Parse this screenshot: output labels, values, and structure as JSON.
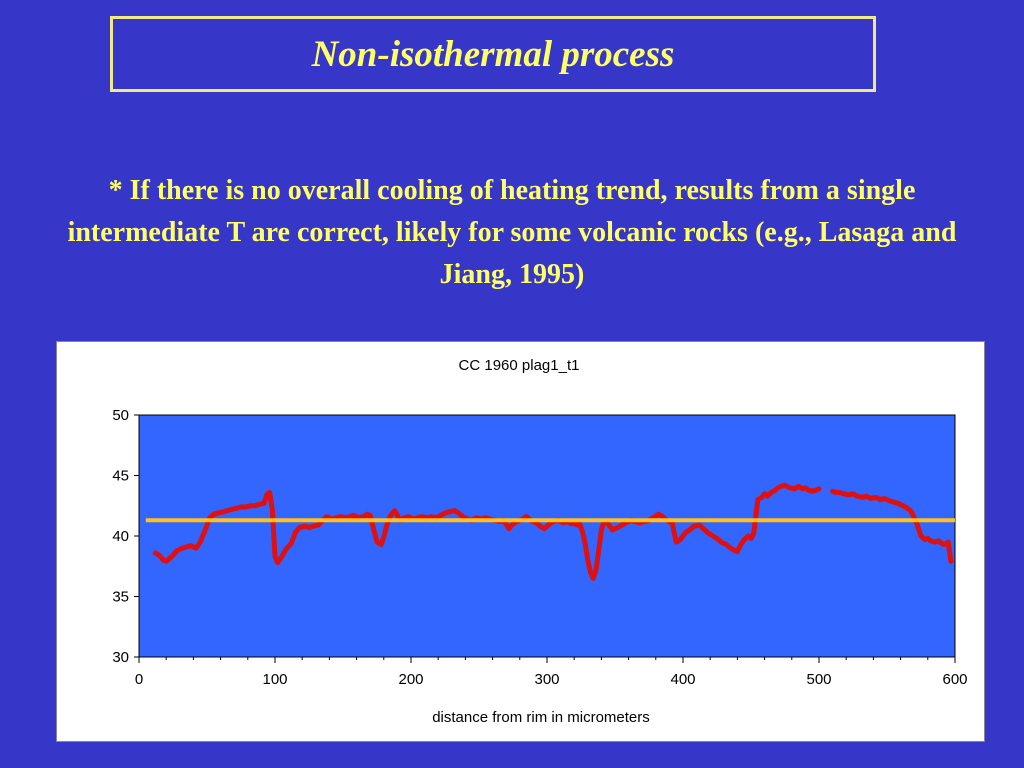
{
  "slide": {
    "title": "Non-isothermal process",
    "bullet_text": "* If there is no overall cooling of heating trend, results from a single intermediate T are correct, likely for some volcanic rocks (e.g., Lasaga and Jiang, 1995)"
  },
  "colors": {
    "background": "#3636c8",
    "title_text": "#ffff66",
    "title_border": "#f2e98a",
    "plot_area": "#3366ff",
    "data_line": "#dd1111",
    "reference_line": "#ffc020"
  },
  "chart_data": {
    "type": "line",
    "title": "CC 1960 plag1_t1",
    "xlabel": "distance from rim in micrometers",
    "ylabel": "",
    "xlim": [
      0,
      600
    ],
    "ylim": [
      30,
      50
    ],
    "xticks": [
      0,
      100,
      200,
      300,
      400,
      500,
      600
    ],
    "yticks": [
      30,
      35,
      40,
      45,
      50
    ],
    "grid": false,
    "legend": "none",
    "series": [
      {
        "x": [
          12,
          15,
          18,
          20,
          22,
          25,
          28,
          32,
          35,
          38,
          42,
          45,
          48,
          50,
          52,
          55,
          58,
          62,
          65,
          68,
          72,
          75,
          78,
          82,
          85,
          88,
          92,
          94,
          96,
          98,
          100,
          102,
          105,
          108,
          112,
          115,
          118,
          122,
          125,
          128,
          132,
          135,
          138,
          142,
          145,
          148,
          152,
          155,
          158,
          162,
          165,
          168,
          170,
          172,
          175,
          178,
          180,
          182,
          185,
          188,
          192,
          195,
          198,
          202,
          205,
          208,
          212,
          215,
          218,
          222,
          225,
          228,
          232,
          235,
          238,
          242,
          245,
          248,
          252,
          255,
          258,
          262,
          265,
          268,
          272,
          275,
          278,
          282,
          285,
          288,
          292,
          295,
          298,
          302,
          305,
          308,
          312,
          315,
          318,
          320,
          322,
          324,
          326,
          328,
          330,
          332,
          334,
          336,
          338,
          340,
          342,
          345,
          348,
          352,
          355,
          358,
          362,
          365,
          368,
          372,
          375,
          378,
          382,
          385,
          388,
          392,
          395,
          398,
          402,
          405,
          408,
          412,
          415,
          418,
          422,
          425,
          428,
          432,
          435,
          438,
          440,
          442,
          445,
          448,
          450,
          452,
          455,
          458,
          460,
          462,
          465,
          468,
          470,
          472,
          475,
          478,
          482,
          485,
          488,
          490,
          492,
          495,
          498,
          500
        ],
        "y": [
          38.6,
          38.4,
          38.0,
          37.9,
          38.1,
          38.4,
          38.8,
          39.0,
          39.1,
          39.2,
          39.0,
          39.5,
          40.3,
          40.9,
          41.5,
          41.8,
          41.9,
          42.0,
          42.1,
          42.2,
          42.3,
          42.4,
          42.4,
          42.5,
          42.5,
          42.6,
          42.7,
          43.4,
          43.6,
          42.2,
          38.3,
          37.8,
          38.3,
          38.9,
          39.4,
          40.3,
          40.7,
          40.8,
          40.7,
          40.8,
          40.9,
          41.3,
          41.6,
          41.4,
          41.5,
          41.6,
          41.5,
          41.6,
          41.7,
          41.5,
          41.6,
          41.8,
          41.7,
          40.8,
          39.5,
          39.3,
          39.9,
          40.8,
          41.7,
          42.1,
          41.3,
          41.5,
          41.6,
          41.4,
          41.5,
          41.6,
          41.5,
          41.6,
          41.5,
          41.7,
          41.9,
          42.0,
          42.1,
          41.9,
          41.6,
          41.4,
          41.3,
          41.5,
          41.4,
          41.5,
          41.4,
          41.3,
          41.2,
          41.3,
          40.6,
          41.0,
          41.2,
          41.4,
          41.6,
          41.3,
          41.1,
          40.8,
          40.6,
          41.0,
          41.2,
          41.3,
          41.1,
          41.2,
          41.0,
          41.1,
          40.9,
          41.0,
          40.4,
          39.4,
          38.0,
          37.0,
          36.5,
          37.2,
          38.8,
          40.5,
          41.2,
          41.0,
          40.5,
          40.7,
          40.9,
          41.1,
          41.3,
          41.2,
          41.1,
          41.2,
          41.3,
          41.5,
          41.8,
          41.6,
          41.3,
          41.1,
          39.5,
          39.7,
          40.3,
          40.5,
          40.8,
          40.9,
          40.6,
          40.3,
          40.0,
          39.8,
          39.5,
          39.3,
          39.0,
          38.8,
          38.7,
          39.2,
          39.7,
          40.0,
          39.8,
          40.2,
          43.0,
          43.2,
          43.5,
          43.3,
          43.6,
          43.8,
          44.0,
          44.1,
          44.2,
          44.0,
          43.9,
          44.1,
          43.9,
          44.0,
          43.8,
          43.7,
          43.8,
          43.9
        ]
      },
      {
        "x": [
          510,
          512,
          515,
          518,
          522,
          525,
          528,
          532,
          535,
          538,
          542,
          545,
          548,
          552,
          555,
          558,
          562,
          565,
          568,
          570,
          572,
          575,
          578,
          580,
          582,
          585,
          588,
          590,
          592,
          595,
          597
        ],
        "y": [
          43.7,
          43.6,
          43.6,
          43.5,
          43.4,
          43.5,
          43.3,
          43.2,
          43.3,
          43.1,
          43.2,
          43.0,
          43.1,
          42.9,
          42.8,
          42.7,
          42.5,
          42.3,
          42.0,
          41.5,
          41.0,
          40.0,
          39.7,
          39.8,
          39.6,
          39.5,
          39.6,
          39.4,
          39.3,
          39.5,
          37.9
        ]
      }
    ],
    "reference_line": {
      "y": 41.3,
      "x_start": 5,
      "x_end": 600
    }
  }
}
